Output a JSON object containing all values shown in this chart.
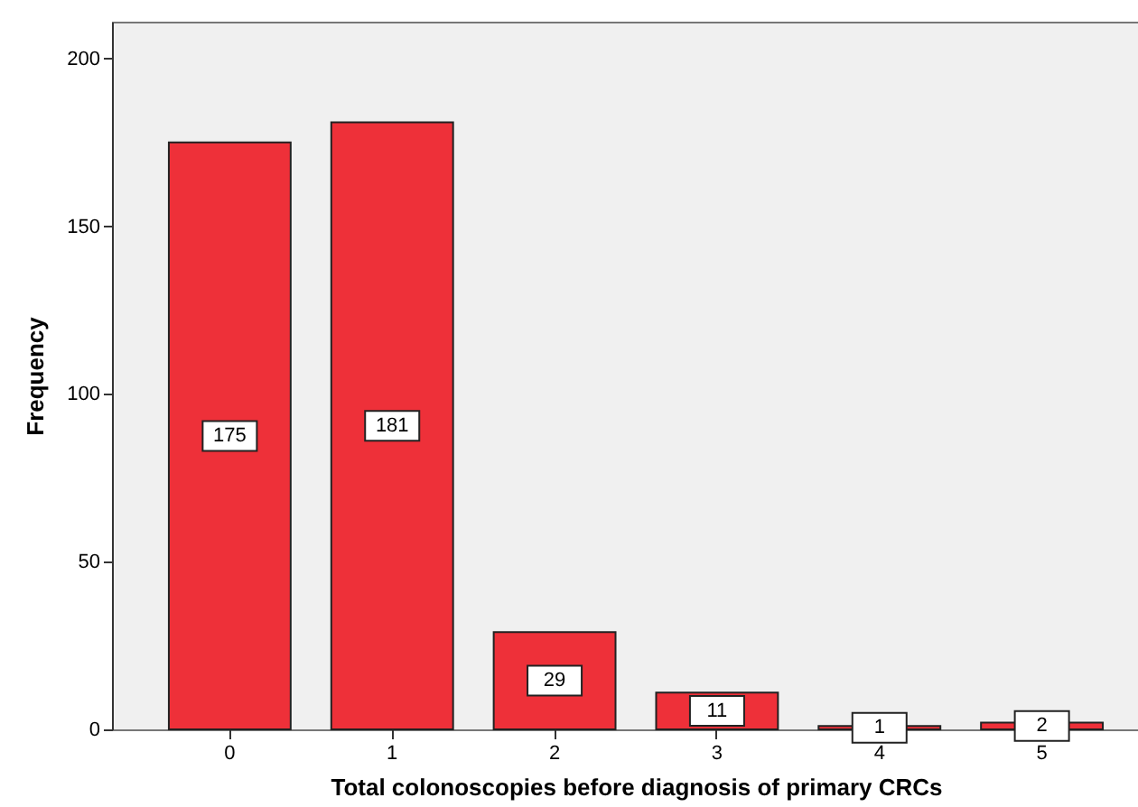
{
  "chart_data": {
    "type": "bar",
    "xlabel": "Total colonoscopies before diagnosis of primary CRCs",
    "ylabel": "Frequency",
    "categories": [
      "0",
      "1",
      "2",
      "3",
      "4",
      "5"
    ],
    "values": [
      175,
      181,
      29,
      11,
      1,
      2
    ],
    "color": "#ee3039",
    "ylim": [
      0,
      211
    ],
    "yticks": [
      0,
      50,
      100,
      150,
      200
    ],
    "grid": false,
    "data_labels": true
  }
}
